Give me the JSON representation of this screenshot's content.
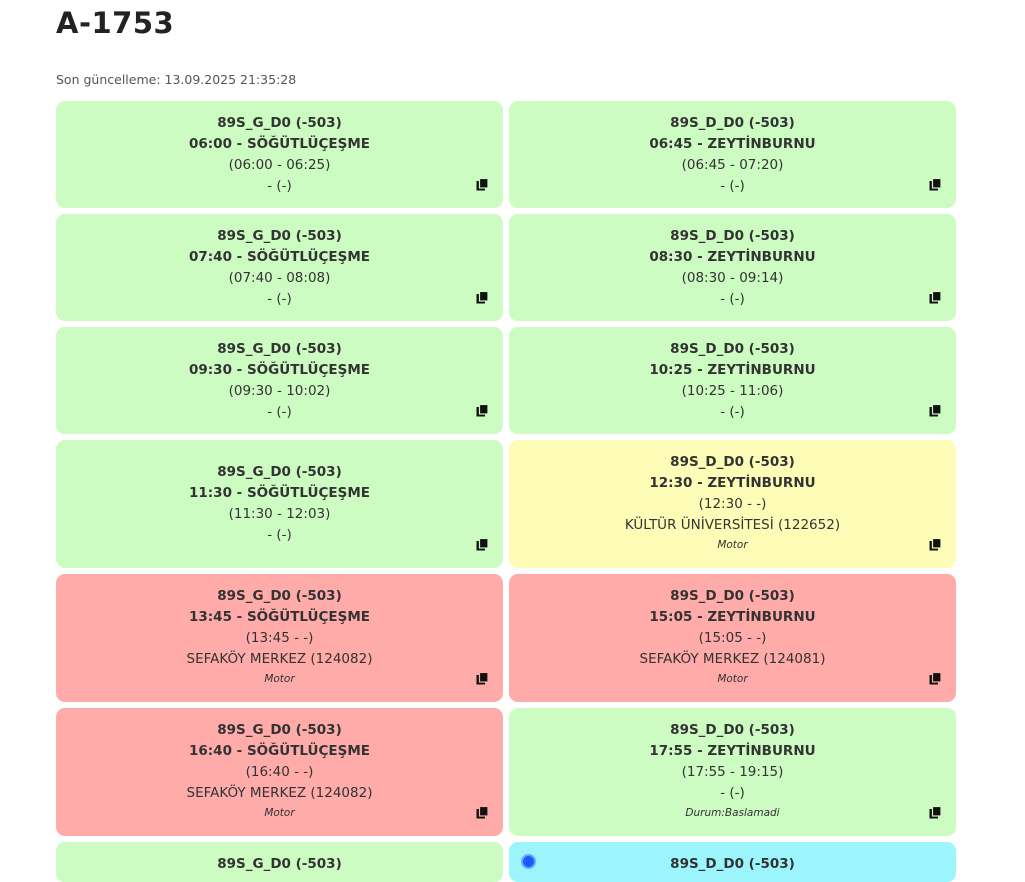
{
  "header": {
    "title": "A-1753",
    "updated": "Son güncelleme: 13.09.2025 21:35:28"
  },
  "colors": {
    "green": "#ccfcc1",
    "yellow": "#fdfdb8",
    "red": "#feabaa",
    "cyan": "#9cf5fd"
  },
  "trips": [
    {
      "route": "89S_G_D0 (-503)",
      "dep": "06:00 - SÖĞÜTLÜÇEŞME",
      "time": "(06:00 - 06:25)",
      "driver": "- (-)",
      "note": "",
      "status": "green"
    },
    {
      "route": "89S_D_D0 (-503)",
      "dep": "06:45 - ZEYTİNBURNU",
      "time": "(06:45 - 07:20)",
      "driver": "- (-)",
      "note": "",
      "status": "green"
    },
    {
      "route": "89S_G_D0 (-503)",
      "dep": "07:40 - SÖĞÜTLÜÇEŞME",
      "time": "(07:40 - 08:08)",
      "driver": "- (-)",
      "note": "",
      "status": "green"
    },
    {
      "route": "89S_D_D0 (-503)",
      "dep": "08:30 - ZEYTİNBURNU",
      "time": "(08:30 - 09:14)",
      "driver": "- (-)",
      "note": "",
      "status": "green"
    },
    {
      "route": "89S_G_D0 (-503)",
      "dep": "09:30 - SÖĞÜTLÜÇEŞME",
      "time": "(09:30 - 10:02)",
      "driver": "- (-)",
      "note": "",
      "status": "green"
    },
    {
      "route": "89S_D_D0 (-503)",
      "dep": "10:25 - ZEYTİNBURNU",
      "time": "(10:25 - 11:06)",
      "driver": "- (-)",
      "note": "",
      "status": "green"
    },
    {
      "route": "89S_G_D0 (-503)",
      "dep": "11:30 - SÖĞÜTLÜÇEŞME",
      "time": "(11:30 - 12:03)",
      "driver": "- (-)",
      "note": "",
      "status": "green"
    },
    {
      "route": "89S_D_D0 (-503)",
      "dep": "12:30 - ZEYTİNBURNU",
      "time": "(12:30 - -)",
      "driver": "KÜLTÜR ÜNİVERSİTESİ (122652)",
      "note": "Motor",
      "status": "yellow"
    },
    {
      "route": "89S_G_D0 (-503)",
      "dep": "13:45 - SÖĞÜTLÜÇEŞME",
      "time": "(13:45 - -)",
      "driver": "SEFAKÖY MERKEZ (124082)",
      "note": "Motor",
      "status": "red"
    },
    {
      "route": "89S_D_D0 (-503)",
      "dep": "15:05 - ZEYTİNBURNU",
      "time": "(15:05 - -)",
      "driver": "SEFAKÖY MERKEZ (124081)",
      "note": "Motor",
      "status": "red"
    },
    {
      "route": "89S_G_D0 (-503)",
      "dep": "16:40 - SÖĞÜTLÜÇEŞME",
      "time": "(16:40 - -)",
      "driver": "SEFAKÖY MERKEZ (124082)",
      "note": "Motor",
      "status": "red"
    },
    {
      "route": "89S_D_D0 (-503)",
      "dep": "17:55 - ZEYTİNBURNU",
      "time": "(17:55 - 19:15)",
      "driver": "- (-)",
      "note": "Durum:Baslamadi",
      "status": "green"
    },
    {
      "route": "89S_G_D0 (-503)",
      "status": "green"
    },
    {
      "route": "89S_D_D0 (-503)",
      "status": "cyan",
      "active": true
    }
  ],
  "icons": {
    "copy": "copy-icon",
    "active": "active-dot-icon"
  }
}
